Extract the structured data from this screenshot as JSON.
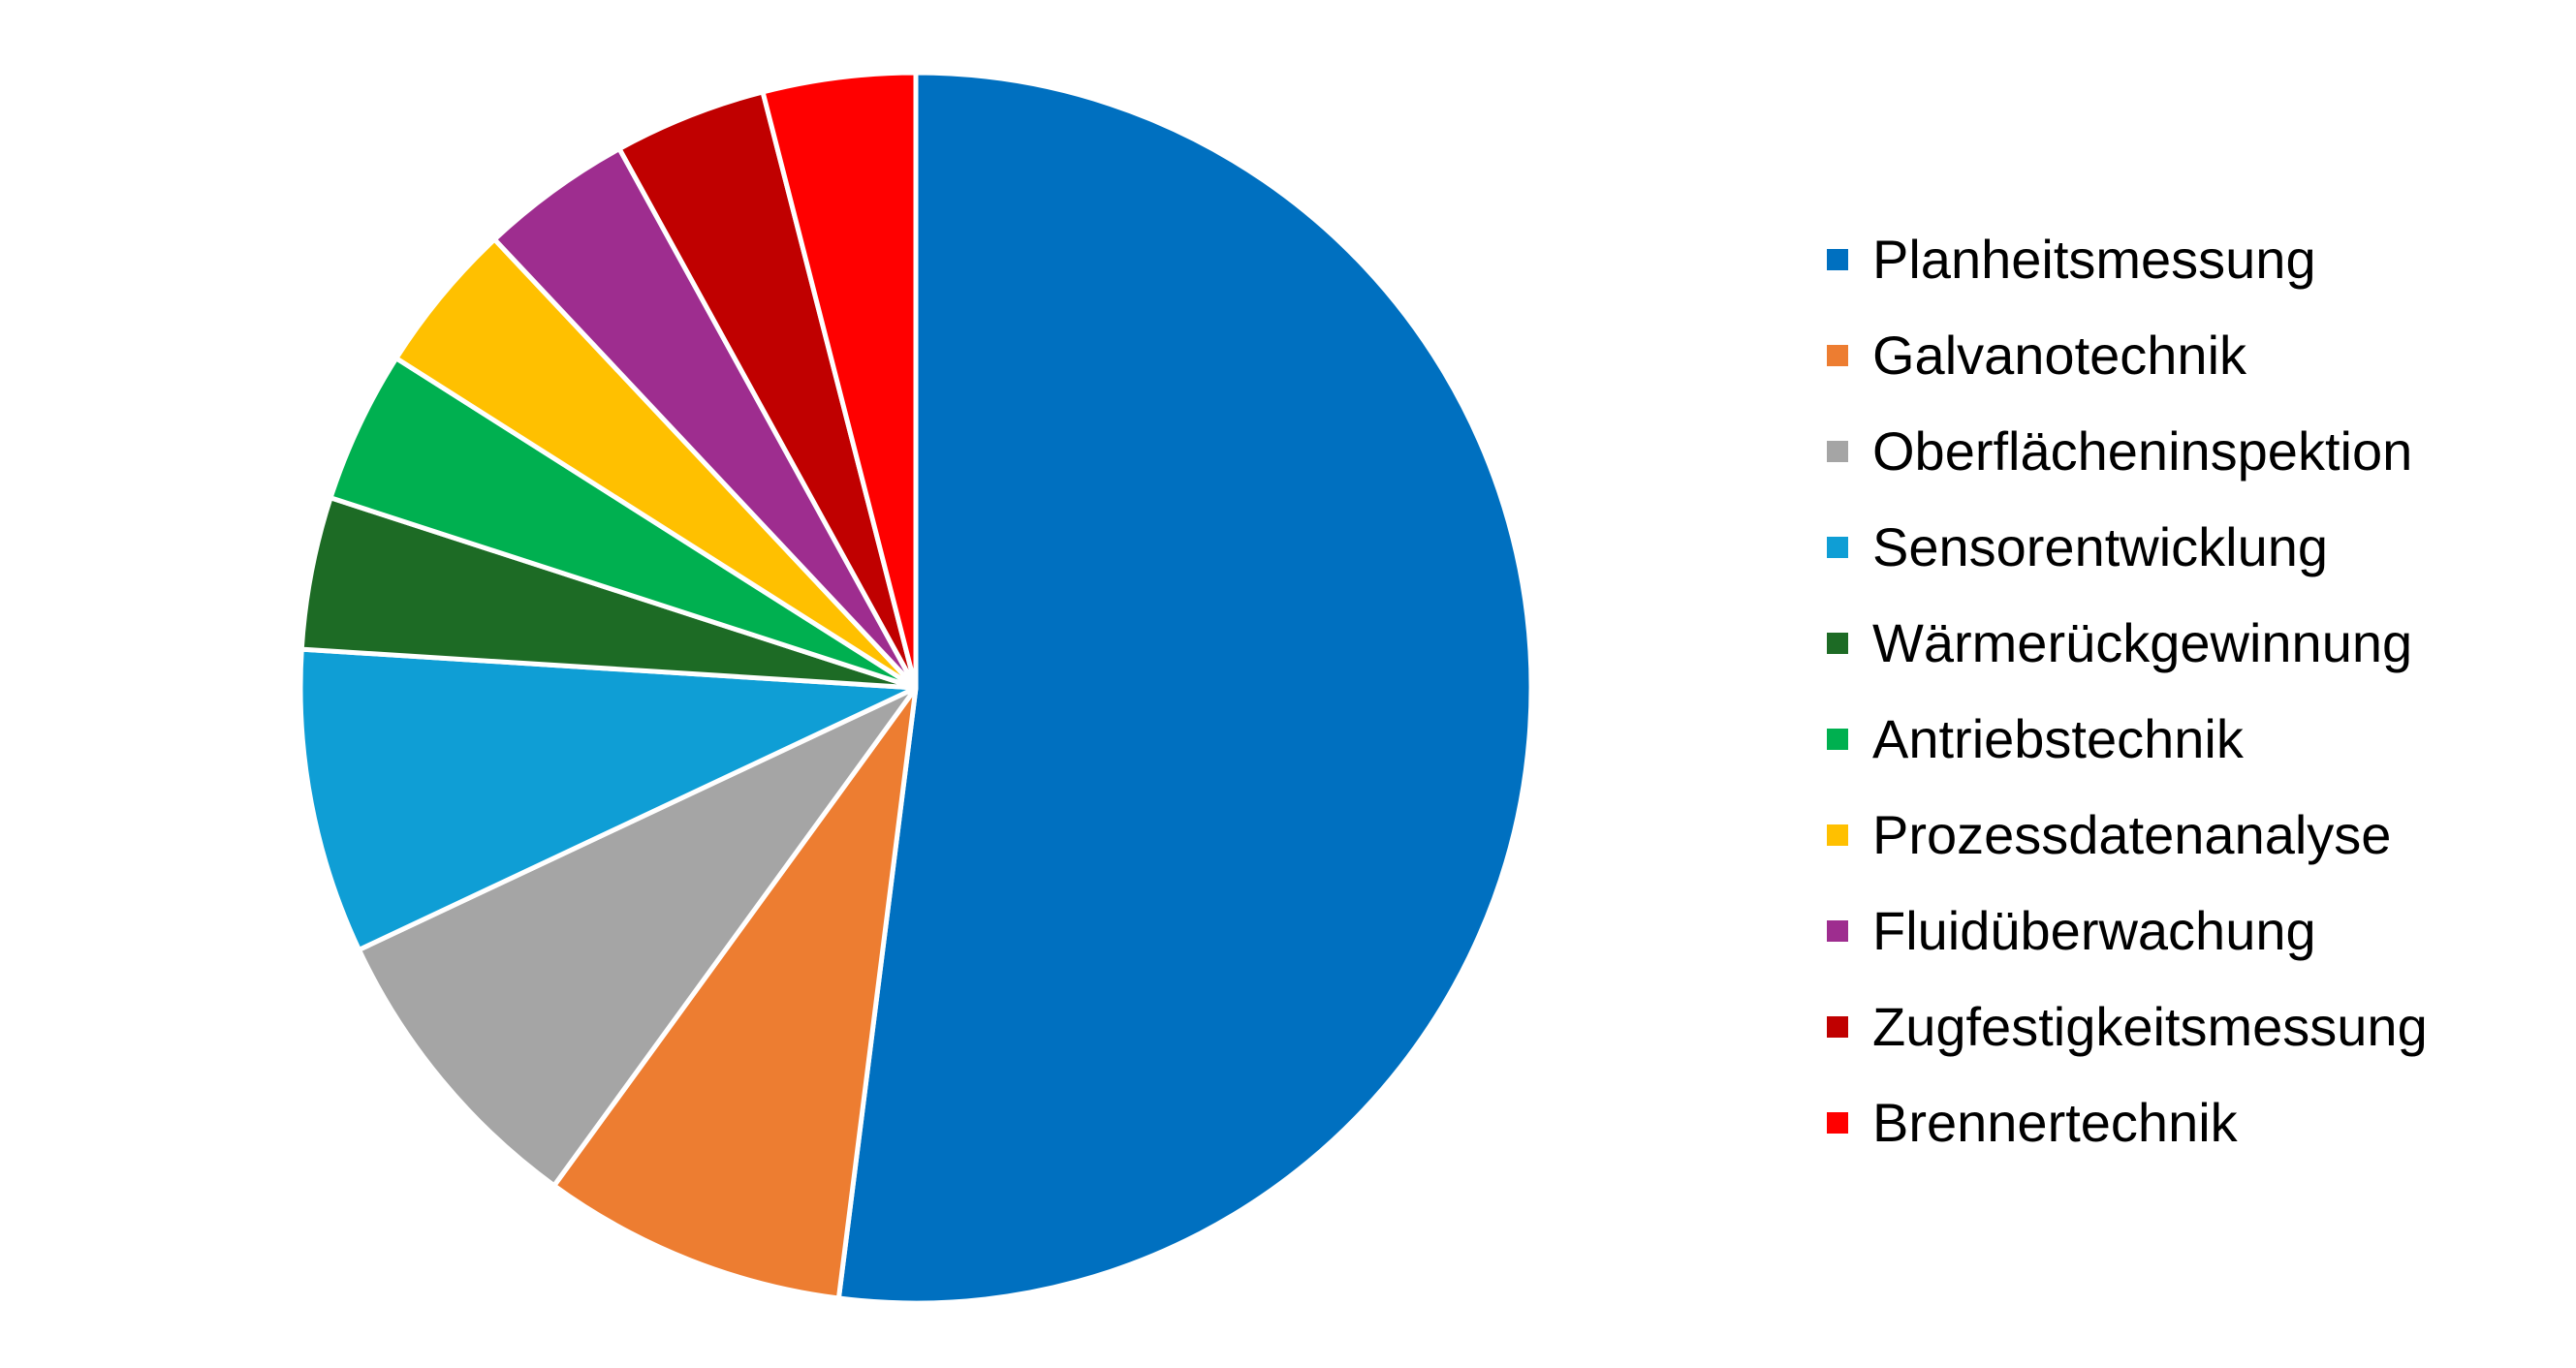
{
  "chart_data": {
    "type": "pie",
    "title": "",
    "categories": [
      "Planheitsmessung",
      "Galvanotechnik",
      "Oberflächeninspektion",
      "Sensorentwicklung",
      "Wärmerückgewinnung",
      "Antriebstechnik",
      "Prozessdatenanalyse",
      "Fluidüberwachung",
      "Zugfestigkeitsmessung",
      "Brennertechnik"
    ],
    "values": [
      13,
      2,
      2,
      2,
      1,
      1,
      1,
      1,
      1,
      1
    ],
    "colors": [
      "#0070C0",
      "#ED7D31",
      "#A5A5A5",
      "#0F9ED5",
      "#1D6B25",
      "#00B050",
      "#FFC000",
      "#9E2D8F",
      "#C00000",
      "#FF0000"
    ],
    "start_angle": "12 o'clock",
    "direction": "clockwise",
    "slice_border_color": "#FFFFFF",
    "legend_position": "right"
  }
}
